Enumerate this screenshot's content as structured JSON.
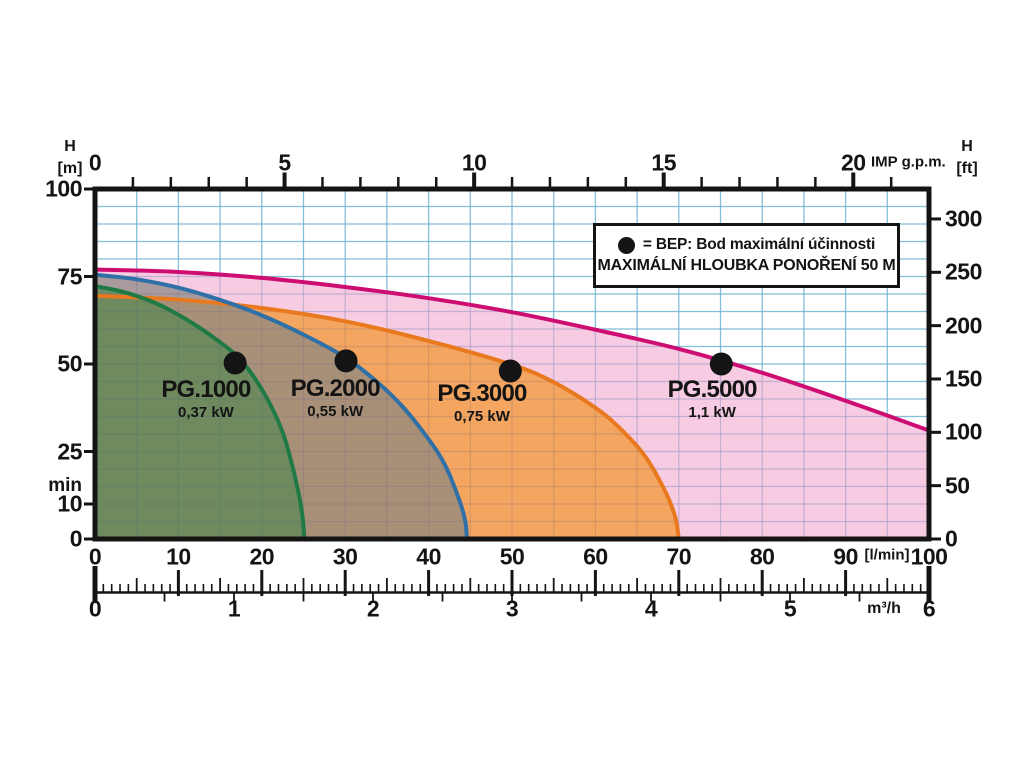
{
  "page": {
    "background": "#ffffff",
    "text_color": "#141414"
  },
  "legend": {
    "bep_symbol": "●",
    "line1": "= BEP: Bod maximální účinnosti",
    "line2": "MAXIMÁLNÍ HLOUBKA PONOŘENÍ 50 M"
  },
  "chart_data": {
    "type": "area",
    "grid": {
      "color": "#8ecfe4",
      "overlay_color": "rgba(70,80,150,0.13)",
      "x_step_lmin": 5,
      "y_step_m": 5
    },
    "axes": {
      "bottom": {
        "unit": "[l/min]",
        "min": 0,
        "max": 100,
        "ticks": [
          0,
          10,
          20,
          30,
          40,
          50,
          60,
          70,
          80,
          90,
          100
        ]
      },
      "bottom_secondary": {
        "unit": "m³/h",
        "min": 0,
        "max": 6,
        "ticks": [
          0,
          1,
          2,
          3,
          4,
          5,
          6
        ]
      },
      "top": {
        "unit": "IMP g.p.m.",
        "ticks": [
          0,
          5,
          10,
          15,
          20
        ],
        "lmin_per_gpm": 4.546
      },
      "left": {
        "label_line1": "H",
        "label_line2": "[m]",
        "min": 0,
        "max": 100,
        "ticks": [
          0,
          10,
          25,
          50,
          75,
          100
        ],
        "min_label": "min",
        "min_value": 10
      },
      "right": {
        "label_line1": "H",
        "label_line2": "[ft]",
        "ticks": [
          0,
          50,
          100,
          150,
          200,
          250,
          300
        ],
        "m_per_ft": 0.3048
      }
    },
    "series": [
      {
        "name": "PG.5000",
        "power": "1,1 kW",
        "line_color": "#ce0d73",
        "fill_color": "rgba(244,183,215,0.72)",
        "points": [
          [
            0,
            77
          ],
          [
            10,
            76.3
          ],
          [
            20,
            74.6
          ],
          [
            30,
            72
          ],
          [
            40,
            68.8
          ],
          [
            50,
            64.8
          ],
          [
            60,
            59.8
          ],
          [
            70,
            54.3
          ],
          [
            80,
            47.5
          ],
          [
            90,
            39.5
          ],
          [
            100,
            31
          ]
        ],
        "bep": [
          75.1,
          50
        ],
        "label_pos": [
          74,
          40
        ]
      },
      {
        "name": "PG.3000",
        "power": "0,75 kW",
        "line_color": "#e8791f",
        "fill_color": "rgba(243,149,44,0.72)",
        "points": [
          [
            0,
            69.5
          ],
          [
            10,
            68.4
          ],
          [
            20,
            66
          ],
          [
            30,
            62.2
          ],
          [
            40,
            56.6
          ],
          [
            50,
            49.8
          ],
          [
            55,
            44.8
          ],
          [
            60,
            37.5
          ],
          [
            63,
            31.5
          ],
          [
            66,
            23.5
          ],
          [
            68.5,
            13
          ],
          [
            69.6,
            6
          ],
          [
            70,
            0
          ]
        ],
        "bep": [
          49.8,
          48
        ],
        "label_pos": [
          46.4,
          39
        ]
      },
      {
        "name": "PG.2000",
        "power": "0,55 kW",
        "line_color": "#2f70a6",
        "fill_color": "rgba(138,136,130,0.72)",
        "points": [
          [
            0,
            75.5
          ],
          [
            5,
            74.2
          ],
          [
            10,
            71.8
          ],
          [
            15,
            68.3
          ],
          [
            20,
            63.9
          ],
          [
            25,
            58.4
          ],
          [
            30,
            51.9
          ],
          [
            34,
            44.5
          ],
          [
            37,
            37.5
          ],
          [
            40,
            28.5
          ],
          [
            42,
            21
          ],
          [
            43.7,
            11
          ],
          [
            44.4,
            5
          ],
          [
            44.6,
            0
          ]
        ],
        "bep": [
          30.1,
          50.9
        ],
        "label_pos": [
          28.8,
          40.3
        ]
      },
      {
        "name": "PG.1000",
        "power": "0,37 kW",
        "line_color": "#1f7a46",
        "fill_color": "rgba(87,136,85,0.72)",
        "points": [
          [
            0,
            72.3
          ],
          [
            4,
            70.2
          ],
          [
            8,
            66.6
          ],
          [
            12,
            61.2
          ],
          [
            15,
            56.2
          ],
          [
            17,
            52.3
          ],
          [
            19,
            46.5
          ],
          [
            21,
            38.5
          ],
          [
            22.5,
            30.5
          ],
          [
            23.6,
            21.5
          ],
          [
            24.5,
            12
          ],
          [
            24.9,
            6
          ],
          [
            25.1,
            0
          ]
        ],
        "bep": [
          16.8,
          50.3
        ],
        "label_pos": [
          13.3,
          40
        ]
      }
    ]
  }
}
